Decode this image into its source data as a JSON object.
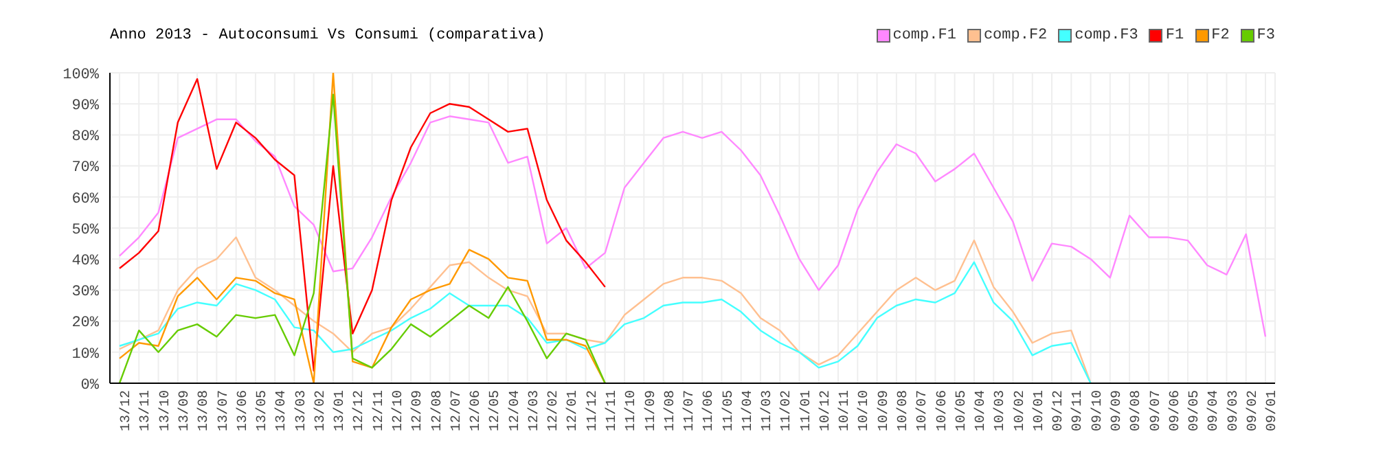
{
  "chart_data": {
    "type": "line",
    "title": "Anno 2013 - Autoconsumi Vs Consumi (comparativa)",
    "categories": [
      "13/12",
      "13/11",
      "13/10",
      "13/09",
      "13/08",
      "13/07",
      "13/06",
      "13/05",
      "13/04",
      "13/03",
      "13/02",
      "13/01",
      "12/12",
      "12/11",
      "12/10",
      "12/09",
      "12/08",
      "12/07",
      "12/06",
      "12/05",
      "12/04",
      "12/03",
      "12/02",
      "12/01",
      "11/12",
      "11/11",
      "11/10",
      "11/09",
      "11/08",
      "11/07",
      "11/06",
      "11/05",
      "11/04",
      "11/03",
      "11/02",
      "11/01",
      "10/12",
      "10/11",
      "10/10",
      "10/09",
      "10/08",
      "10/07",
      "10/06",
      "10/05",
      "10/04",
      "10/03",
      "10/02",
      "10/01",
      "09/12",
      "09/11",
      "09/10",
      "09/09",
      "09/08",
      "09/07",
      "09/06",
      "09/05",
      "09/04",
      "09/03",
      "09/02",
      "09/01"
    ],
    "series": [
      {
        "name": "comp.F1",
        "color": "#ff88ff",
        "values": [
          41,
          47,
          55,
          79,
          82,
          85,
          85,
          78,
          73,
          57,
          51,
          36,
          37,
          47,
          60,
          71,
          84,
          86,
          85,
          84,
          71,
          73,
          45,
          50,
          37,
          42,
          63,
          71,
          79,
          81,
          79,
          81,
          75,
          67,
          54,
          40,
          30,
          38,
          56,
          68,
          77,
          74,
          65,
          69,
          74,
          63,
          52,
          33,
          45,
          44,
          40,
          34,
          54,
          47,
          47,
          46,
          38,
          35,
          48,
          15
        ]
      },
      {
        "name": "comp.F2",
        "color": "#ffc090",
        "values": [
          11,
          14,
          17,
          30,
          37,
          40,
          47,
          34,
          30,
          25,
          20,
          16,
          10,
          16,
          18,
          24,
          31,
          38,
          39,
          34,
          30,
          28,
          16,
          16,
          14,
          13,
          22,
          27,
          32,
          34,
          34,
          33,
          29,
          21,
          17,
          10,
          6,
          9,
          16,
          23,
          30,
          34,
          30,
          33,
          46,
          31,
          23,
          13,
          16,
          17,
          0,
          null,
          null,
          null,
          null,
          null,
          null,
          null,
          null,
          null
        ]
      },
      {
        "name": "comp.F3",
        "color": "#44ffff",
        "values": [
          12,
          14,
          16,
          24,
          26,
          25,
          32,
          30,
          27,
          18,
          17,
          10,
          11,
          14,
          17,
          21,
          24,
          29,
          25,
          25,
          25,
          21,
          13,
          14,
          11,
          13,
          19,
          21,
          25,
          26,
          26,
          27,
          23,
          17,
          13,
          10,
          5,
          7,
          12,
          21,
          25,
          27,
          26,
          29,
          39,
          26,
          20,
          9,
          12,
          13,
          0,
          null,
          null,
          null,
          null,
          null,
          null,
          null,
          null,
          null
        ]
      },
      {
        "name": "F1",
        "color": "#ff0000",
        "values": [
          37,
          42,
          49,
          84,
          98,
          69,
          84,
          79,
          72,
          67,
          4,
          70,
          16,
          30,
          59,
          76,
          87,
          90,
          89,
          85,
          81,
          82,
          59,
          46,
          39,
          31,
          null,
          null,
          null,
          null,
          null,
          null,
          null,
          null,
          null,
          null,
          null,
          null,
          null,
          null,
          null,
          null,
          null,
          null,
          null,
          null,
          null,
          null,
          null,
          null,
          null,
          null,
          null,
          null,
          null,
          null,
          null,
          null,
          null,
          null
        ]
      },
      {
        "name": "F2",
        "color": "#ff9900",
        "values": [
          8,
          13,
          12,
          28,
          34,
          27,
          34,
          33,
          29,
          27,
          0,
          100,
          7,
          5,
          18,
          27,
          30,
          32,
          43,
          40,
          34,
          33,
          14,
          14,
          12,
          0,
          null,
          null,
          null,
          null,
          null,
          null,
          null,
          null,
          null,
          null,
          null,
          null,
          null,
          null,
          null,
          null,
          null,
          null,
          null,
          null,
          null,
          null,
          null,
          null,
          null,
          null,
          null,
          null,
          null,
          null,
          null,
          null,
          null,
          null
        ]
      },
      {
        "name": "F3",
        "color": "#66cc00",
        "values": [
          0,
          17,
          10,
          17,
          19,
          15,
          22,
          21,
          22,
          9,
          29,
          93,
          8,
          5,
          11,
          19,
          15,
          20,
          25,
          21,
          31,
          20,
          8,
          16,
          14,
          0,
          null,
          null,
          null,
          null,
          null,
          null,
          null,
          null,
          null,
          null,
          null,
          null,
          null,
          null,
          null,
          null,
          null,
          null,
          null,
          null,
          null,
          null,
          null,
          null,
          null,
          null,
          null,
          null,
          null,
          null,
          null,
          null,
          null,
          null
        ]
      }
    ],
    "ylim": [
      0,
      100
    ],
    "yticks": [
      {
        "value": 0,
        "label": "0%"
      },
      {
        "value": 10,
        "label": "10%"
      },
      {
        "value": 20,
        "label": "20%"
      },
      {
        "value": 30,
        "label": "30%"
      },
      {
        "value": 40,
        "label": "40%"
      },
      {
        "value": 50,
        "label": "50%"
      },
      {
        "value": 60,
        "label": "60%"
      },
      {
        "value": 70,
        "label": "70%"
      },
      {
        "value": 80,
        "label": "80%"
      },
      {
        "value": 90,
        "label": "90%"
      },
      {
        "value": 100,
        "label": "100%"
      }
    ],
    "grid": true,
    "legend": "top right",
    "marker": "none",
    "line_style": "solid"
  }
}
